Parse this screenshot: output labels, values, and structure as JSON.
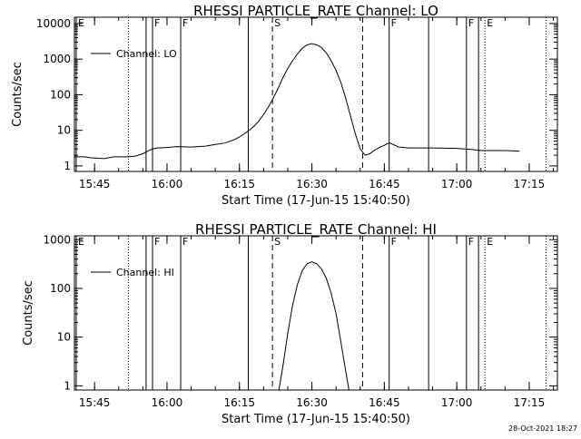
{
  "timestamp": "28-Oct-2021 18:27",
  "chart_data": [
    {
      "type": "line",
      "title": "RHESSI PARTICLE_RATE Channel: LO",
      "xlabel": "Start Time (17-Jun-15 15:40:50)",
      "ylabel": "Counts/sec",
      "yscale": "log",
      "xlim": [
        "15:40:50",
        "17:20:50"
      ],
      "ylim": [
        0.7,
        15000
      ],
      "xticks": [
        "15:45",
        "16:00",
        "16:15",
        "16:30",
        "16:45",
        "17:00",
        "17:15"
      ],
      "yticks": [
        1,
        10,
        100,
        1000,
        10000
      ],
      "ytick_labels": [
        "1",
        "10",
        "100",
        "1000",
        "10000"
      ],
      "legend": "top-left",
      "series": [
        {
          "name": "Channel: LO",
          "x": [
            "15:40:50",
            "15:43:00",
            "15:44:00",
            "15:47:00",
            "15:48:00",
            "15:49:00",
            "15:51:00",
            "15:52:00",
            "15:53:30",
            "15:55:00",
            "15:56:00",
            "15:57:00",
            "15:58:00",
            "16:00:00",
            "16:02:00",
            "16:05:00",
            "16:08:00",
            "16:10:00",
            "16:12:00",
            "16:14:00",
            "16:15:00",
            "16:16:00",
            "16:17:00",
            "16:18:00",
            "16:19:00",
            "16:20:00",
            "16:21:00",
            "16:22:00",
            "16:23:00",
            "16:24:00",
            "16:25:00",
            "16:26:00",
            "16:27:00",
            "16:28:00",
            "16:29:00",
            "16:30:00",
            "16:31:00",
            "16:32:00",
            "16:33:00",
            "16:34:00",
            "16:35:00",
            "16:36:00",
            "16:37:00",
            "16:38:00",
            "16:39:00",
            "16:40:00",
            "16:41:00",
            "16:42:00",
            "16:43:00",
            "16:44:00",
            "16:45:00",
            "16:46:00",
            "16:48:00",
            "16:50:00",
            "16:55:00",
            "17:00:00",
            "17:03:00",
            "17:05:00",
            "17:10:00",
            "17:13:00"
          ],
          "y": [
            1.8,
            1.8,
            1.7,
            1.6,
            1.7,
            1.8,
            1.8,
            1.8,
            1.9,
            2.2,
            2.6,
            3.0,
            3.2,
            3.3,
            3.5,
            3.4,
            3.6,
            4.0,
            4.4,
            5.5,
            6.5,
            8,
            10,
            13,
            18,
            28,
            45,
            80,
            150,
            300,
            550,
            900,
            1400,
            2000,
            2500,
            2700,
            2500,
            2100,
            1500,
            900,
            480,
            220,
            80,
            25,
            8,
            3,
            2,
            2.2,
            2.8,
            3.3,
            3.8,
            4.5,
            3.4,
            3.2,
            3.2,
            3.1,
            2.9,
            2.7,
            2.7,
            2.6
          ]
        }
      ],
      "markers": [
        {
          "x": "15:41:12",
          "label": "E",
          "style": "solid"
        },
        {
          "x": "15:52:00",
          "label": "",
          "style": "dotted"
        },
        {
          "x": "15:55:40",
          "label": "",
          "style": "solid"
        },
        {
          "x": "15:57:00",
          "label": "F",
          "style": "solid"
        },
        {
          "x": "16:02:50",
          "label": "F",
          "style": "solid"
        },
        {
          "x": "16:16:50",
          "label": "",
          "style": "solid"
        },
        {
          "x": "16:21:50",
          "label": "S",
          "style": "dashed"
        },
        {
          "x": "16:40:30",
          "label": "",
          "style": "dashed"
        },
        {
          "x": "16:46:00",
          "label": "F",
          "style": "solid"
        },
        {
          "x": "16:54:10",
          "label": "",
          "style": "solid"
        },
        {
          "x": "17:02:00",
          "label": "F",
          "style": "solid"
        },
        {
          "x": "17:04:30",
          "label": "",
          "style": "solid"
        },
        {
          "x": "17:05:50",
          "label": "E",
          "style": "dotted"
        },
        {
          "x": "17:18:30",
          "label": "",
          "style": "dotted"
        }
      ]
    },
    {
      "type": "line",
      "title": "RHESSI PARTICLE_RATE Channel: HI",
      "xlabel": "Start Time (17-Jun-15 15:40:50)",
      "ylabel": "Counts/sec",
      "yscale": "log",
      "xlim": [
        "15:40:50",
        "17:20:50"
      ],
      "ylim": [
        0.82,
        1200
      ],
      "xticks": [
        "15:45",
        "16:00",
        "16:15",
        "16:30",
        "16:45",
        "17:00",
        "17:15"
      ],
      "yticks": [
        1,
        10,
        100,
        1000
      ],
      "ytick_labels": [
        "1",
        "10",
        "100",
        "1000"
      ],
      "legend": "top-left",
      "series": [
        {
          "name": "Channel: HI",
          "x": [
            "16:23:10",
            "16:24:00",
            "16:25:00",
            "16:26:00",
            "16:27:00",
            "16:28:00",
            "16:29:00",
            "16:30:00",
            "16:31:00",
            "16:32:00",
            "16:33:00",
            "16:34:00",
            "16:35:00",
            "16:36:00",
            "16:37:00",
            "16:37:40"
          ],
          "y": [
            0.82,
            2.5,
            12,
            45,
            120,
            230,
            320,
            350,
            320,
            250,
            160,
            80,
            30,
            8,
            2,
            0.82
          ]
        }
      ],
      "markers": [
        {
          "x": "15:41:12",
          "label": "E",
          "style": "solid"
        },
        {
          "x": "15:52:00",
          "label": "",
          "style": "dotted"
        },
        {
          "x": "15:55:40",
          "label": "",
          "style": "solid"
        },
        {
          "x": "15:57:00",
          "label": "F",
          "style": "solid"
        },
        {
          "x": "16:02:50",
          "label": "F",
          "style": "solid"
        },
        {
          "x": "16:16:50",
          "label": "",
          "style": "solid"
        },
        {
          "x": "16:21:50",
          "label": "S",
          "style": "dashed"
        },
        {
          "x": "16:40:30",
          "label": "",
          "style": "dashed"
        },
        {
          "x": "16:46:00",
          "label": "F",
          "style": "solid"
        },
        {
          "x": "16:54:10",
          "label": "",
          "style": "solid"
        },
        {
          "x": "17:02:00",
          "label": "F",
          "style": "solid"
        },
        {
          "x": "17:04:30",
          "label": "",
          "style": "solid"
        },
        {
          "x": "17:05:50",
          "label": "E",
          "style": "dotted"
        },
        {
          "x": "17:18:30",
          "label": "",
          "style": "dotted"
        }
      ]
    }
  ]
}
